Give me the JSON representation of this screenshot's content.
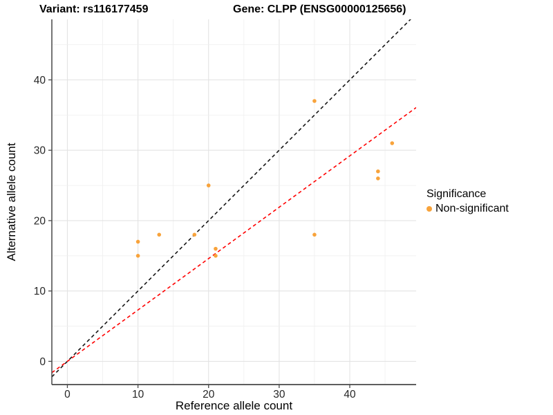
{
  "titles": {
    "left": "Variant: rs116177459",
    "right": "Gene: CLPP (ENSG00000125656)"
  },
  "legend": {
    "title": "Significance",
    "items": [
      {
        "label": "Non-significant",
        "marker": "dot",
        "color": "#F8A33B"
      }
    ]
  },
  "chart_data": {
    "type": "scatter",
    "title_left": "Variant: rs116177459",
    "title_right": "Gene: CLPP (ENSG00000125656)",
    "xlabel": "Reference allele count",
    "ylabel": "Alternative allele count",
    "x_ticks": [
      0,
      10,
      20,
      30,
      40
    ],
    "y_ticks": [
      0,
      10,
      20,
      30,
      40
    ],
    "x_range": [
      -2.2,
      49.4
    ],
    "y_range": [
      -3.3,
      48.6
    ],
    "grid_interval": 5,
    "grid_on": true,
    "legend_position": "right",
    "series": [
      {
        "name": "Non-significant",
        "color": "#F8A33B",
        "points": [
          [
            10,
            15
          ],
          [
            10,
            17
          ],
          [
            13,
            18
          ],
          [
            18,
            18
          ],
          [
            20,
            25
          ],
          [
            21,
            15
          ],
          [
            21,
            16
          ],
          [
            35,
            18
          ],
          [
            35,
            37
          ],
          [
            44,
            26
          ],
          [
            44,
            27
          ],
          [
            46,
            31
          ]
        ]
      }
    ],
    "reference_lines": [
      {
        "name": "identity-line",
        "slope": 1,
        "intercept": 0,
        "color": "#141414",
        "style": "dashed"
      },
      {
        "name": "expected-ratio-line",
        "slope": 0.73,
        "intercept": 0,
        "color": "#FF0000",
        "style": "dashed"
      }
    ],
    "colors": {
      "point": "#F8A33B",
      "grid_major": "#E3E3E3",
      "grid_minor": "#EFEFEF",
      "axis_line": "#474747",
      "tick_text": "#262626"
    }
  }
}
